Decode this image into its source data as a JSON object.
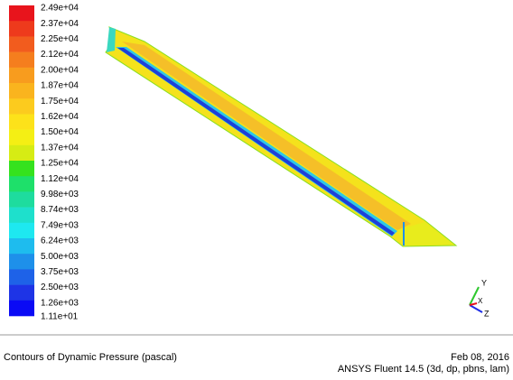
{
  "colorbar": {
    "labels": [
      "2.49e+04",
      "2.37e+04",
      "2.25e+04",
      "2.12e+04",
      "2.00e+04",
      "1.87e+04",
      "1.75e+04",
      "1.62e+04",
      "1.50e+04",
      "1.37e+04",
      "1.25e+04",
      "1.12e+04",
      "9.98e+03",
      "8.74e+03",
      "7.49e+03",
      "6.24e+03",
      "5.00e+03",
      "3.75e+03",
      "2.50e+03",
      "1.26e+03",
      "1.11e+01"
    ],
    "colors": [
      "#e8141c",
      "#ee3a1c",
      "#f25c1e",
      "#f57e1e",
      "#f89c1e",
      "#fab41e",
      "#fccb1e",
      "#fde21a",
      "#f4ef14",
      "#d6ec14",
      "#35e21e",
      "#1ee06a",
      "#1edc9e",
      "#1ee0cc",
      "#1ee8f0",
      "#1ebcee",
      "#1e90ea",
      "#1e62e8",
      "#1e34e6",
      "#0a0af5"
    ]
  },
  "triad": {
    "y": "Y",
    "x": "X",
    "z": "Z"
  },
  "footer": {
    "title": "Contours of Dynamic Pressure (pascal)",
    "date": "Feb 08, 2016",
    "product": "ANSYS Fluent 14.5 (3d, dp, pbns, lam)"
  }
}
